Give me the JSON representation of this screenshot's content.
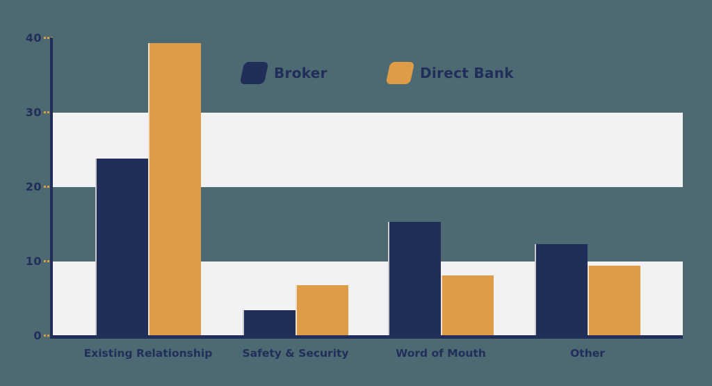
{
  "colors": {
    "background": "#4d6972",
    "band": "#f2f2f4",
    "axis": "#222e5a",
    "broker": "#222e5a",
    "direct_bank": "#dd9c45",
    "tick_dots": "#dd9c45",
    "label_text": "#222e5a"
  },
  "chart_data": {
    "type": "bar",
    "title": "",
    "xlabel": "",
    "ylabel": "",
    "categories": [
      "Existing Relationship",
      "Safety & Security",
      "Word of Mouth",
      "Other"
    ],
    "series": [
      {
        "name": "Broker",
        "color": "#222e5a",
        "values": [
          23.8,
          3.4,
          15.3,
          12.3
        ]
      },
      {
        "name": "Direct Bank",
        "color": "#dd9c45",
        "values": [
          39.3,
          6.8,
          8.1,
          9.4
        ]
      }
    ],
    "ylim": [
      0,
      40
    ],
    "yticks": [
      0,
      10,
      20,
      30,
      40
    ],
    "grid": "alternating horizontal light bands covering 0-10 and 20-30",
    "legend_position": "top-center"
  }
}
